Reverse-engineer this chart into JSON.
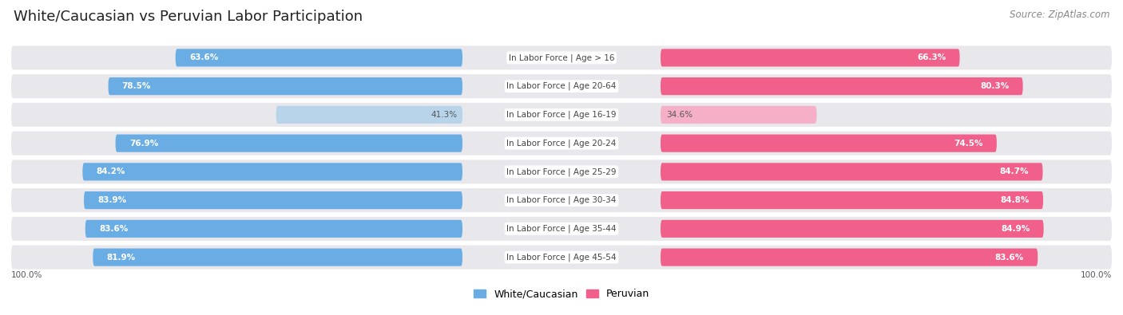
{
  "title": "White/Caucasian vs Peruvian Labor Participation",
  "source": "Source: ZipAtlas.com",
  "categories": [
    "In Labor Force | Age > 16",
    "In Labor Force | Age 20-64",
    "In Labor Force | Age 16-19",
    "In Labor Force | Age 20-24",
    "In Labor Force | Age 25-29",
    "In Labor Force | Age 30-34",
    "In Labor Force | Age 35-44",
    "In Labor Force | Age 45-54"
  ],
  "white_values": [
    63.6,
    78.5,
    41.3,
    76.9,
    84.2,
    83.9,
    83.6,
    81.9
  ],
  "peruvian_values": [
    66.3,
    80.3,
    34.6,
    74.5,
    84.7,
    84.8,
    84.9,
    83.6
  ],
  "white_color": "#6aade4",
  "white_color_light": "#b8d4ea",
  "peruvian_color": "#f0608a",
  "peruvian_color_light": "#f5b0c8",
  "label_white": "White/Caucasian",
  "label_peruvian": "Peruvian",
  "bg_color": "#ffffff",
  "row_bg": "#e8e8ec",
  "axis_label": "100.0%",
  "max_val": 100.0,
  "bar_height": 0.62,
  "title_fontsize": 13,
  "source_fontsize": 8.5,
  "cat_fontsize": 7.5,
  "value_fontsize": 7.5,
  "legend_fontsize": 9
}
